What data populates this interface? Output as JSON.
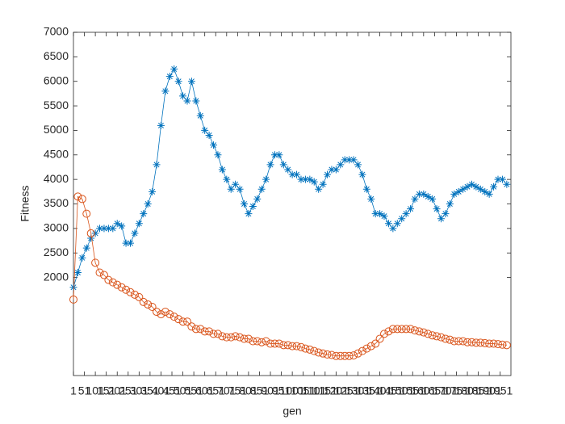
{
  "chart_data": {
    "type": "line",
    "xlabel": "gen",
    "ylabel": "Fitness",
    "x": [
      1,
      21,
      41,
      61,
      81,
      101,
      121,
      141,
      161,
      181,
      201,
      221,
      241,
      261,
      281,
      301,
      321,
      341,
      361,
      381,
      401,
      421,
      441,
      461,
      481,
      501,
      521,
      541,
      561,
      581,
      601,
      621,
      641,
      661,
      681,
      701,
      721,
      741,
      761,
      781,
      801,
      821,
      841,
      861,
      881,
      901,
      921,
      941,
      961,
      981,
      1001,
      1021,
      1041,
      1061,
      1081,
      1101,
      1121,
      1141,
      1161,
      1181,
      1201,
      1221,
      1241,
      1261,
      1281,
      1301,
      1321,
      1341,
      1361,
      1381,
      1401,
      1421,
      1441,
      1461,
      1481,
      1501,
      1521,
      1541,
      1561,
      1581,
      1601,
      1621,
      1641,
      1661,
      1681,
      1701,
      1721,
      1741,
      1761,
      1781,
      1801,
      1821,
      1841,
      1861,
      1881,
      1901,
      1921,
      1941,
      1961,
      1981
    ],
    "series": [
      {
        "color": "#0072BD",
        "marker": "star",
        "values": [
          1800,
          2100,
          2400,
          2600,
          2800,
          2900,
          3000,
          3000,
          3000,
          3000,
          3100,
          3050,
          2700,
          2700,
          2900,
          3100,
          3300,
          3500,
          3750,
          4300,
          5100,
          5800,
          6100,
          6250,
          6000,
          5700,
          5600,
          6000,
          5600,
          5300,
          5000,
          4900,
          4700,
          4500,
          4200,
          4000,
          3800,
          3900,
          3800,
          3500,
          3300,
          3450,
          3600,
          3800,
          4000,
          4300,
          4500,
          4500,
          4300,
          4200,
          4100,
          4100,
          4000,
          4000,
          4000,
          3950,
          3800,
          3900,
          4100,
          4200,
          4200,
          4300,
          4400,
          4400,
          4400,
          4300,
          4100,
          3800,
          3600,
          3300,
          3300,
          3250,
          3100,
          3000,
          3100,
          3200,
          3300,
          3400,
          3600,
          3700,
          3700,
          3650,
          3600,
          3400,
          3200,
          3300,
          3500,
          3700,
          3750,
          3800,
          3850,
          3900,
          3850,
          3800,
          3750,
          3700,
          3850,
          4000,
          4000,
          3900
        ]
      },
      {
        "color": "#D95319",
        "marker": "circle",
        "values": [
          1550,
          3650,
          3600,
          3300,
          2900,
          2300,
          2100,
          2050,
          1950,
          1900,
          1850,
          1800,
          1750,
          1700,
          1650,
          1600,
          1500,
          1450,
          1400,
          1300,
          1250,
          1300,
          1250,
          1200,
          1150,
          1100,
          1100,
          1000,
          950,
          950,
          900,
          900,
          850,
          850,
          800,
          780,
          780,
          800,
          780,
          750,
          750,
          700,
          700,
          680,
          700,
          650,
          650,
          650,
          620,
          620,
          600,
          600,
          580,
          550,
          530,
          500,
          470,
          450,
          430,
          420,
          400,
          400,
          400,
          400,
          410,
          450,
          500,
          550,
          600,
          650,
          750,
          850,
          900,
          950,
          950,
          950,
          950,
          950,
          920,
          900,
          880,
          850,
          820,
          800,
          780,
          750,
          730,
          700,
          700,
          700,
          680,
          680,
          670,
          670,
          660,
          650,
          650,
          640,
          630,
          620
        ]
      }
    ],
    "xlim": [
      1,
      2000
    ],
    "ylim": [
      0,
      7000
    ],
    "xticks": [
      1,
      51,
      101,
      151,
      201,
      251,
      301,
      351,
      401,
      451,
      501,
      551,
      601,
      651,
      701,
      751,
      801,
      851,
      901,
      951,
      1001,
      1051,
      1101,
      1151,
      1201,
      1251,
      1301,
      1351,
      1401,
      1451,
      1501,
      1551,
      1601,
      1651,
      1701,
      1751,
      1801,
      1851,
      1901,
      1951
    ],
    "yticks": [
      2000,
      2500,
      3000,
      3500,
      4000,
      4500,
      5000,
      5500,
      6000,
      6500,
      7000
    ]
  }
}
